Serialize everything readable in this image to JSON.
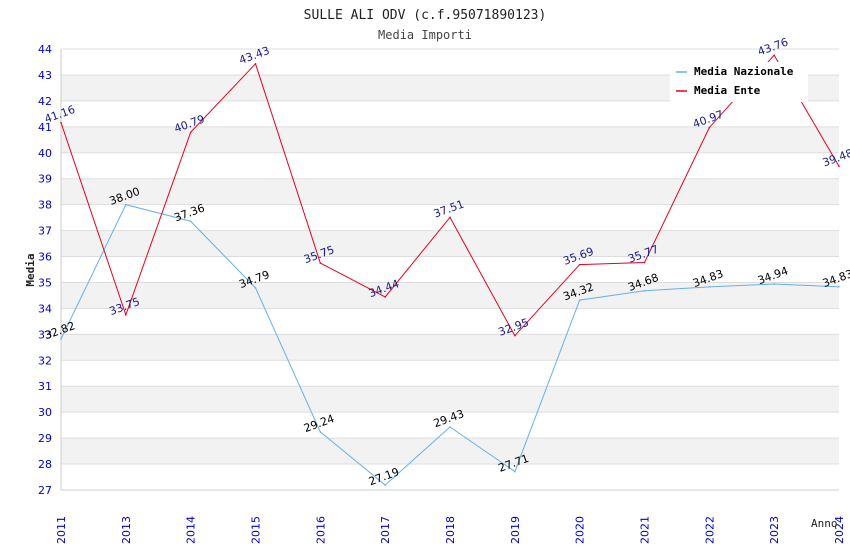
{
  "chart_data": {
    "type": "line",
    "title": "SULLE ALI ODV (c.f.95071890123)",
    "subtitle": "Media Importi",
    "xlabel": "Anno",
    "ylabel": "Media",
    "ylim": [
      27,
      44
    ],
    "grid": true,
    "legend_position": "top-right",
    "x": [
      "2011",
      "2013",
      "2014",
      "2015",
      "2016",
      "2017",
      "2018",
      "2019",
      "2020",
      "2021",
      "2022",
      "2023",
      "2024"
    ],
    "y_ticks": [
      "27",
      "28",
      "29",
      "30",
      "31",
      "32",
      "33",
      "34",
      "35",
      "36",
      "37",
      "38",
      "39",
      "40",
      "41",
      "42",
      "43",
      "44"
    ],
    "series": [
      {
        "name": "Media Nazionale",
        "color": "#6aaee8",
        "label_color": "#000000",
        "values": [
          32.82,
          38.0,
          37.36,
          34.79,
          29.24,
          27.19,
          29.43,
          27.71,
          34.32,
          34.68,
          34.83,
          34.94,
          34.83
        ],
        "labels": [
          "32.82",
          "38.00",
          "37.36",
          "34.79",
          "29.24",
          "27.19",
          "29.43",
          "27.71",
          "34.32",
          "34.68",
          "34.83",
          "34.94",
          "34.83"
        ]
      },
      {
        "name": "Media Ente",
        "color": "#e8001c",
        "label_color": "#1a1a8c",
        "values": [
          41.16,
          33.75,
          40.79,
          43.43,
          35.75,
          34.44,
          37.51,
          32.95,
          35.69,
          35.77,
          40.97,
          43.76,
          39.48
        ],
        "labels": [
          "41.16",
          "33.75",
          "40.79",
          "43.43",
          "35.75",
          "34.44",
          "37.51",
          "32.95",
          "35.69",
          "35.77",
          "40.97",
          "43.76",
          "39.48"
        ]
      }
    ],
    "colors": {
      "axis_tick_text": "#0000cc",
      "grid_band": "#f2f2f2",
      "grid_line": "#dddddd",
      "axis_line": "#cccccc"
    }
  }
}
